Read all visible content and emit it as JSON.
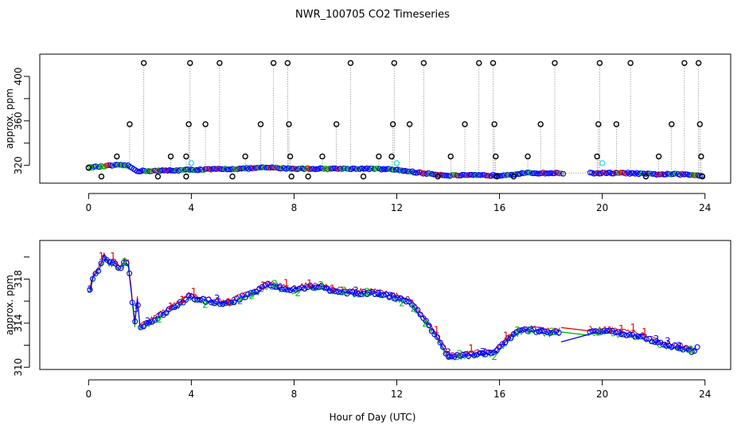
{
  "title": "NWR_100705  CO2 Timeseries",
  "xlabel": "Hour of Day (UTC)",
  "colors": {
    "black": "#000000",
    "cyan": "#33e0e0",
    "blue": "#0000ff",
    "green": "#00bb00",
    "red": "#dd0000",
    "line_gray": "#888888"
  },
  "chart_data": [
    {
      "type": "scatter",
      "panel": "top",
      "title": "NWR_100705  CO2 Timeseries",
      "xlabel": "",
      "ylabel": "approx. ppm",
      "xlim": [
        -1.9,
        25
      ],
      "ylim": [
        304,
        420
      ],
      "xticks": [
        0,
        4,
        8,
        12,
        16,
        20,
        24
      ],
      "yticks": [
        320,
        360,
        400
      ],
      "yticklabels_shown": [
        "320",
        "360",
        "400"
      ],
      "xticklabels": [
        "0",
        "4",
        "8",
        "12",
        "16",
        "20",
        "24"
      ],
      "baseline_ppm": [
        [
          0.0,
          318
        ],
        [
          0.5,
          319
        ],
        [
          1.0,
          320
        ],
        [
          1.5,
          320
        ],
        [
          1.9,
          315
        ],
        [
          2.5,
          315
        ],
        [
          4.0,
          316
        ],
        [
          6.0,
          317
        ],
        [
          7.0,
          318
        ],
        [
          8.0,
          317
        ],
        [
          9.0,
          317
        ],
        [
          10.0,
          317
        ],
        [
          11.0,
          317
        ],
        [
          12.0,
          316
        ],
        [
          13.0,
          313
        ],
        [
          14.0,
          311
        ],
        [
          15.5,
          311
        ],
        [
          16.0,
          311
        ],
        [
          17.0,
          313
        ],
        [
          18.5,
          313
        ],
        [
          19.5,
          313
        ],
        [
          20.0,
          313
        ],
        [
          21.0,
          313
        ],
        [
          22.0,
          312
        ],
        [
          23.0,
          312
        ],
        [
          23.8,
          311
        ]
      ],
      "gap": [
        18.5,
        19.5
      ],
      "outliers_ppm": [
        [
          0.0,
          318
        ],
        [
          0.5,
          310
        ],
        [
          1.1,
          328
        ],
        [
          1.6,
          357
        ],
        [
          2.15,
          412
        ],
        [
          2.7,
          310
        ],
        [
          3.2,
          328
        ],
        [
          3.8,
          328
        ],
        [
          3.8,
          310
        ],
        [
          3.9,
          357
        ],
        [
          3.95,
          412
        ],
        [
          4.55,
          357
        ],
        [
          5.1,
          412
        ],
        [
          5.6,
          310
        ],
        [
          6.1,
          328
        ],
        [
          6.7,
          357
        ],
        [
          7.2,
          412
        ],
        [
          7.75,
          412
        ],
        [
          7.8,
          357
        ],
        [
          7.85,
          328
        ],
        [
          7.9,
          310
        ],
        [
          8.55,
          310
        ],
        [
          9.1,
          328
        ],
        [
          9.65,
          357
        ],
        [
          10.2,
          412
        ],
        [
          10.7,
          310
        ],
        [
          11.3,
          328
        ],
        [
          11.8,
          328
        ],
        [
          11.85,
          357
        ],
        [
          11.9,
          412
        ],
        [
          12.5,
          357
        ],
        [
          13.05,
          412
        ],
        [
          13.6,
          310
        ],
        [
          14.1,
          328
        ],
        [
          14.65,
          357
        ],
        [
          15.2,
          412
        ],
        [
          15.75,
          412
        ],
        [
          15.8,
          357
        ],
        [
          15.85,
          328
        ],
        [
          15.9,
          310
        ],
        [
          16.55,
          310
        ],
        [
          17.1,
          328
        ],
        [
          17.6,
          357
        ],
        [
          18.15,
          412
        ],
        [
          19.8,
          328
        ],
        [
          19.85,
          357
        ],
        [
          19.9,
          412
        ],
        [
          20.55,
          357
        ],
        [
          21.1,
          412
        ],
        [
          21.7,
          310
        ],
        [
          22.2,
          328
        ],
        [
          22.7,
          357
        ],
        [
          23.2,
          412
        ],
        [
          23.75,
          412
        ],
        [
          23.8,
          357
        ],
        [
          23.85,
          328
        ],
        [
          23.9,
          310
        ]
      ],
      "cyan_points_ppm": [
        [
          4.0,
          322
        ],
        [
          12.0,
          322
        ],
        [
          20.0,
          322
        ]
      ]
    },
    {
      "type": "scatter",
      "panel": "bottom",
      "xlabel": "Hour of Day (UTC)",
      "ylabel": "approx. ppm",
      "xlim": [
        -1.9,
        25
      ],
      "ylim": [
        309.8,
        321.5
      ],
      "xticks": [
        0,
        4,
        8,
        12,
        16,
        20,
        24
      ],
      "yticks": [
        310,
        314,
        318
      ],
      "yticklabels_shown": [
        "310",
        "314",
        "318"
      ],
      "xticklabels": [
        "0",
        "4",
        "8",
        "12",
        "16",
        "20",
        "24"
      ],
      "series_markers": [
        "1",
        "2",
        "3"
      ],
      "series_names": [
        "red (1)",
        "green (2)",
        "blue (3)"
      ],
      "profile_ppm": [
        [
          0.05,
          317.0
        ],
        [
          0.2,
          318.3
        ],
        [
          0.4,
          318.9
        ],
        [
          0.6,
          320.0
        ],
        [
          0.8,
          319.5
        ],
        [
          1.0,
          319.5
        ],
        [
          1.2,
          318.9
        ],
        [
          1.4,
          319.5
        ],
        [
          1.55,
          319.3
        ],
        [
          1.7,
          316.0
        ],
        [
          1.8,
          314.0
        ],
        [
          1.9,
          316.2
        ],
        [
          2.0,
          313.6
        ],
        [
          2.3,
          314.0
        ],
        [
          2.6,
          314.4
        ],
        [
          3.0,
          315.0
        ],
        [
          3.5,
          315.7
        ],
        [
          3.9,
          316.4
        ],
        [
          4.3,
          316.1
        ],
        [
          5.0,
          315.9
        ],
        [
          5.5,
          315.8
        ],
        [
          6.0,
          316.4
        ],
        [
          6.5,
          316.8
        ],
        [
          7.0,
          317.5
        ],
        [
          7.5,
          317.2
        ],
        [
          7.8,
          317.0
        ],
        [
          8.1,
          317.0
        ],
        [
          8.5,
          317.3
        ],
        [
          9.0,
          317.3
        ],
        [
          9.5,
          317.0
        ],
        [
          10.0,
          316.8
        ],
        [
          10.5,
          316.7
        ],
        [
          11.0,
          316.8
        ],
        [
          11.5,
          316.6
        ],
        [
          12.0,
          316.3
        ],
        [
          12.5,
          316.0
        ],
        [
          13.0,
          314.5
        ],
        [
          13.5,
          313.0
        ],
        [
          13.8,
          311.8
        ],
        [
          14.0,
          311.0
        ],
        [
          14.5,
          311.0
        ],
        [
          15.0,
          311.2
        ],
        [
          15.5,
          311.3
        ],
        [
          15.8,
          311.3
        ],
        [
          16.2,
          312.2
        ],
        [
          16.6,
          313.1
        ],
        [
          17.0,
          313.4
        ],
        [
          17.5,
          313.3
        ],
        [
          18.0,
          313.1
        ],
        [
          18.4,
          313.2
        ],
        [
          19.5,
          313.3
        ],
        [
          19.8,
          313.2
        ],
        [
          20.1,
          313.3
        ],
        [
          20.6,
          313.1
        ],
        [
          21.0,
          313.0
        ],
        [
          21.5,
          312.8
        ],
        [
          22.0,
          312.3
        ],
        [
          22.5,
          312.0
        ],
        [
          23.0,
          311.8
        ],
        [
          23.5,
          311.5
        ],
        [
          23.7,
          311.7
        ]
      ],
      "gap": [
        18.4,
        19.5
      ],
      "gap_lines_ppm": [
        {
          "series": "red",
          "from": [
            18.4,
            313.6
          ],
          "to": [
            19.5,
            313.3
          ]
        },
        {
          "series": "green",
          "from": [
            18.4,
            313.2
          ],
          "to": [
            19.5,
            312.9
          ]
        },
        {
          "series": "blue",
          "from": [
            18.4,
            312.3
          ],
          "to": [
            19.5,
            313.0
          ]
        }
      ]
    }
  ]
}
